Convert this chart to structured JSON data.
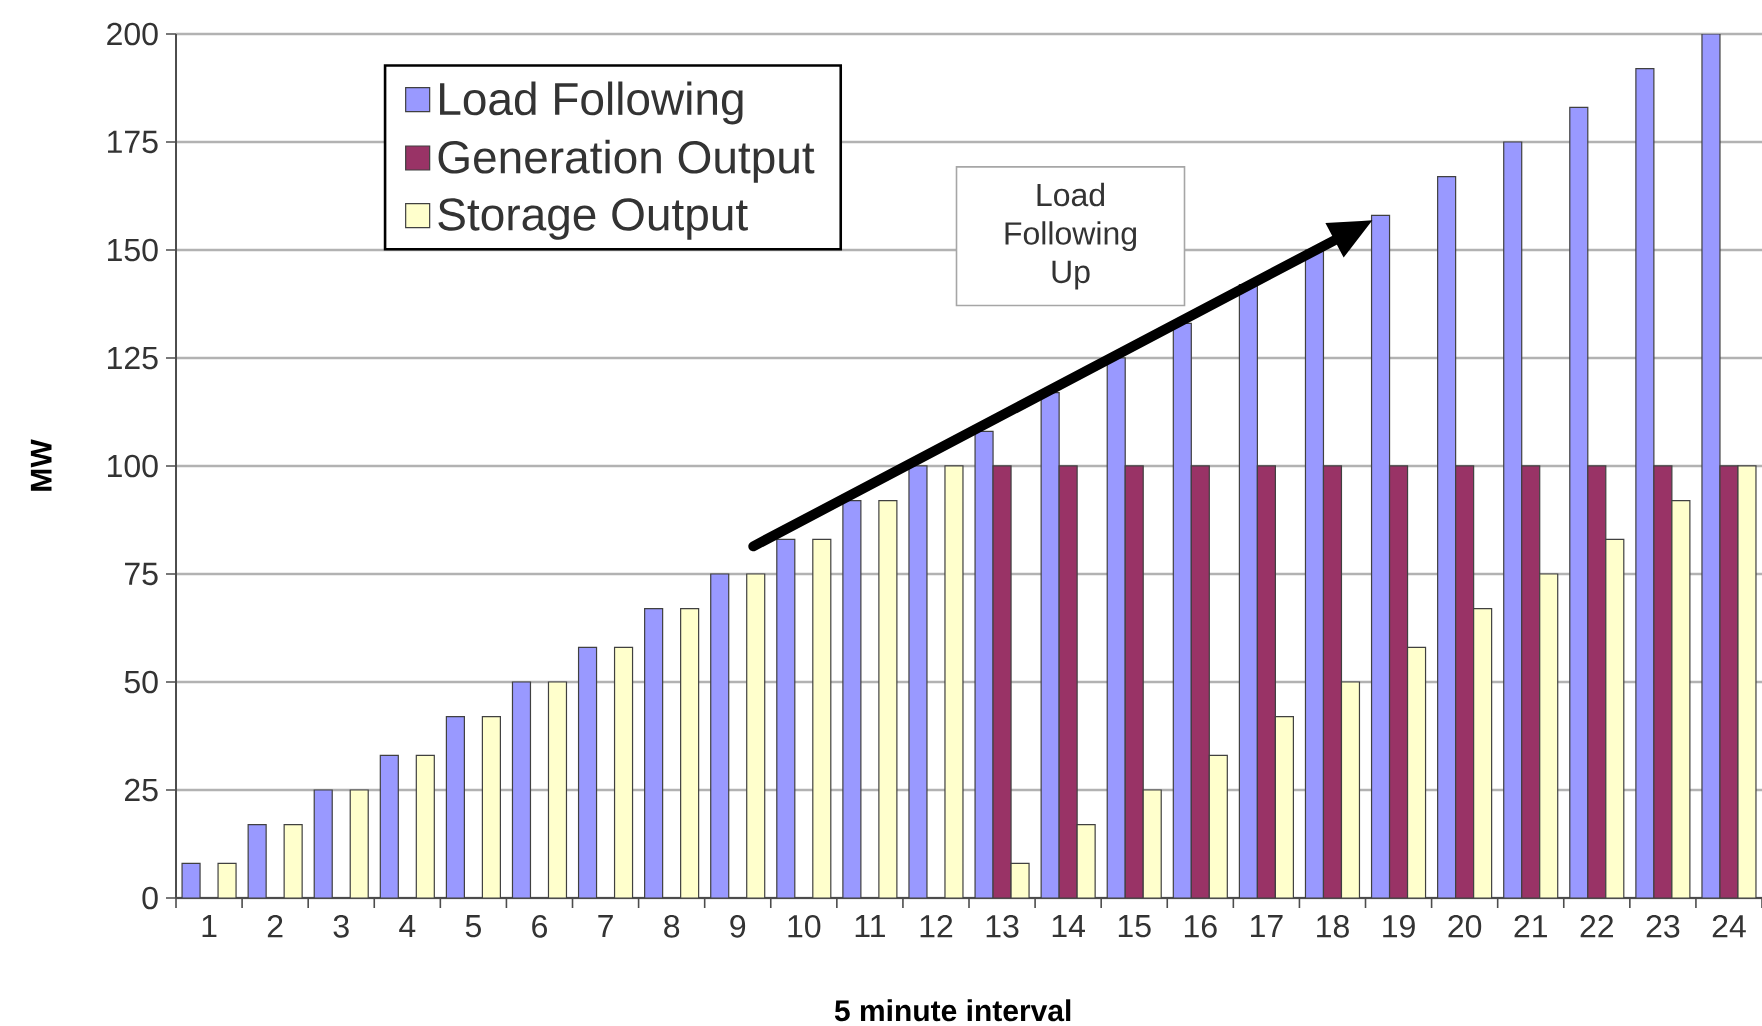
{
  "chart_data": {
    "type": "bar",
    "xlabel": "5 minute interval",
    "ylabel": "MW",
    "categories": [
      "1",
      "2",
      "3",
      "4",
      "5",
      "6",
      "7",
      "8",
      "9",
      "10",
      "11",
      "12",
      "13",
      "14",
      "15",
      "16",
      "17",
      "18",
      "19",
      "20",
      "21",
      "22",
      "23",
      "24"
    ],
    "ylim": [
      0,
      200
    ],
    "yticks": [
      0,
      25,
      50,
      75,
      100,
      125,
      150,
      175,
      200
    ],
    "grid": "y",
    "legend": "top left",
    "annotations": [
      "Load Following Up"
    ],
    "series": [
      {
        "name": "Load Following",
        "color": "#9999ff",
        "values": [
          8,
          17,
          25,
          33,
          42,
          50,
          58,
          67,
          75,
          83,
          92,
          100,
          108,
          117,
          125,
          133,
          142,
          150,
          158,
          167,
          175,
          183,
          192,
          200
        ]
      },
      {
        "name": "Generation Output",
        "color": "#993366",
        "values": [
          null,
          null,
          null,
          null,
          null,
          null,
          null,
          null,
          null,
          null,
          null,
          null,
          100,
          100,
          100,
          100,
          100,
          100,
          100,
          100,
          100,
          100,
          100,
          100
        ]
      },
      {
        "name": "Storage Output",
        "color": "#ffffcc",
        "values": [
          8,
          17,
          25,
          33,
          42,
          50,
          58,
          67,
          75,
          83,
          92,
          100,
          8,
          17,
          25,
          33,
          42,
          50,
          58,
          67,
          75,
          83,
          92,
          100
        ]
      }
    ]
  }
}
